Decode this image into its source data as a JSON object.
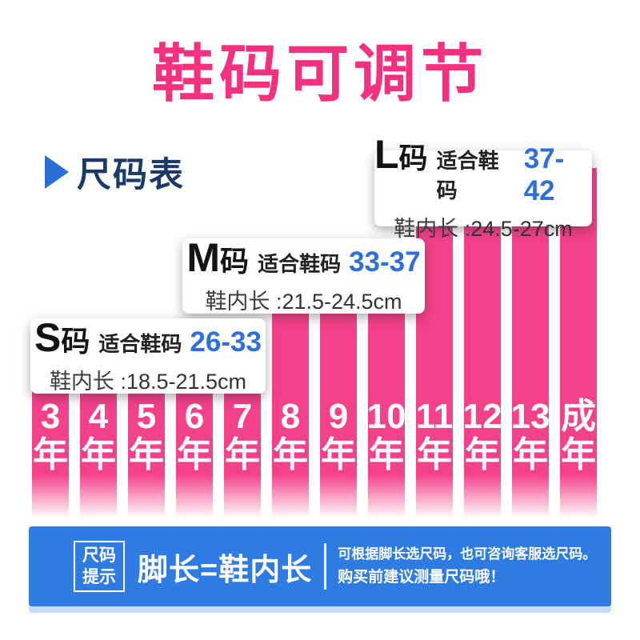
{
  "title": "鞋码可调节",
  "section": {
    "header": "尺码表"
  },
  "sizes": [
    {
      "letter": "S",
      "suffix": "码",
      "fit_label": "适合鞋码",
      "range": "26-33",
      "inner_label": "鞋内长 :",
      "inner_value": "18.5-21.5cm"
    },
    {
      "letter": "M",
      "suffix": "码",
      "fit_label": "适合鞋码",
      "range": "33-37",
      "inner_label": "鞋内长 :",
      "inner_value": "21.5-24.5cm"
    },
    {
      "letter": "L",
      "suffix": "码",
      "fit_label": "适合鞋码",
      "range": "37-42",
      "inner_label": "鞋内长 :",
      "inner_value": "24.5-27cm"
    }
  ],
  "chart_data": {
    "type": "bar",
    "title": "尺码表",
    "categories": [
      "3年",
      "4年",
      "5年",
      "6年",
      "7年",
      "8年",
      "9年",
      "10年",
      "11年",
      "12年",
      "13年",
      "成年"
    ],
    "bars": [
      {
        "label": "3",
        "suffix": "年",
        "group": "s"
      },
      {
        "label": "4",
        "suffix": "年",
        "group": "s"
      },
      {
        "label": "5",
        "suffix": "年",
        "group": "s"
      },
      {
        "label": "6",
        "suffix": "年",
        "group": "s"
      },
      {
        "label": "7",
        "suffix": "年",
        "group": "s"
      },
      {
        "label": "8",
        "suffix": "年",
        "group": "m"
      },
      {
        "label": "9",
        "suffix": "年",
        "group": "m"
      },
      {
        "label": "10",
        "suffix": "年",
        "group": "m"
      },
      {
        "label": "11",
        "suffix": "年",
        "group": "l"
      },
      {
        "label": "12",
        "suffix": "年",
        "group": "l"
      },
      {
        "label": "13",
        "suffix": "年",
        "group": "l"
      },
      {
        "label": "成",
        "suffix": "年",
        "group": "l"
      }
    ],
    "groups": [
      {
        "size": "S",
        "age_range": "3年-7年",
        "shoe_size": "26-33",
        "inner_length": "18.5-21.5cm"
      },
      {
        "size": "M",
        "age_range": "8年-10年",
        "shoe_size": "33-37",
        "inner_length": "21.5-24.5cm"
      },
      {
        "size": "L",
        "age_range": "11年-成年",
        "shoe_size": "37-42",
        "inner_length": "24.5-27cm"
      }
    ],
    "layout": {
      "levels": 3,
      "legend": false,
      "grid": false
    }
  },
  "footer": {
    "tip_badge_line1": "尺码",
    "tip_badge_line2": "提示",
    "headline": "脚长=鞋内长",
    "note_line1": "可根据脚长选尺码，也可咨询客服选尺码。",
    "note_line2": "购买前建议测量尺码哦！"
  },
  "colors": {
    "title_pink": "#f5317f",
    "bar_pink": "#f5418a",
    "accent_blue": "#2e6fd8",
    "header_navy": "#1b3a69",
    "banner_blue": "#2e7ce2"
  }
}
